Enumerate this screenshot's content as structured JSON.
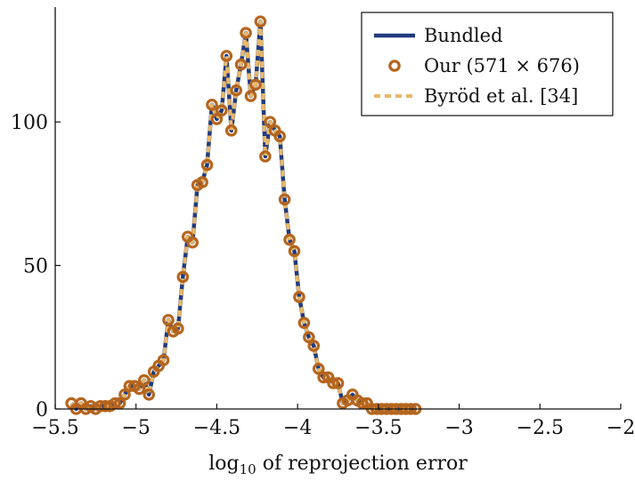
{
  "chart_data": {
    "type": "line",
    "title": "",
    "xlabel": {
      "prefix": "log",
      "subscript": "10",
      "suffix": " of reprojection error"
    },
    "ylabel": "",
    "xlim": [
      -5.5,
      -2
    ],
    "ylim": [
      0,
      140
    ],
    "x_ticks": [
      -5.5,
      -5,
      -4.5,
      -4,
      -3.5,
      -3,
      -2.5,
      -2
    ],
    "x_tick_labels": [
      "−5.5",
      "−5",
      "−4.5",
      "−4",
      "−3.5",
      "−3",
      "−2.5",
      "−2"
    ],
    "y_ticks": [
      0,
      50,
      100
    ],
    "y_tick_labels": [
      "0",
      "50",
      "100"
    ],
    "grid": false,
    "legend_position": "top-right",
    "colors": {
      "bundled": "#1f3b80",
      "our": "#b5651d",
      "byrod": "#e8b86a"
    },
    "x": [
      -5.4,
      -5.37,
      -5.34,
      -5.31,
      -5.28,
      -5.25,
      -5.22,
      -5.19,
      -5.16,
      -5.13,
      -5.1,
      -5.07,
      -5.04,
      -5.01,
      -4.98,
      -4.95,
      -4.92,
      -4.89,
      -4.86,
      -4.83,
      -4.8,
      -4.77,
      -4.74,
      -4.71,
      -4.68,
      -4.65,
      -4.62,
      -4.59,
      -4.56,
      -4.53,
      -4.5,
      -4.47,
      -4.44,
      -4.41,
      -4.38,
      -4.35,
      -4.32,
      -4.29,
      -4.26,
      -4.23,
      -4.2,
      -4.17,
      -4.14,
      -4.11,
      -4.08,
      -4.05,
      -4.02,
      -3.99,
      -3.96,
      -3.93,
      -3.9,
      -3.87,
      -3.84,
      -3.81,
      -3.78,
      -3.75,
      -3.72,
      -3.69,
      -3.66,
      -3.63,
      -3.6,
      -3.57,
      -3.54,
      -3.51,
      -3.48,
      -3.45,
      -3.42,
      -3.39,
      -3.36,
      -3.33,
      -3.3,
      -3.27
    ],
    "series": [
      {
        "name": "Bundled",
        "style": "line",
        "values": [
          2,
          0,
          2,
          0,
          1,
          0,
          1,
          1,
          1,
          2,
          2,
          5,
          8,
          8,
          7,
          10,
          5,
          13,
          15,
          17,
          31,
          27,
          28,
          46,
          60,
          58,
          78,
          79,
          85,
          106,
          101,
          104,
          123,
          97,
          111,
          120,
          131,
          109,
          113,
          135,
          88,
          100,
          97,
          95,
          73,
          59,
          55,
          39,
          30,
          25,
          22,
          14,
          11,
          11,
          9,
          9,
          2,
          3,
          5,
          3,
          2,
          2,
          0,
          0,
          0,
          0,
          0,
          0,
          0,
          0,
          0,
          0
        ]
      },
      {
        "name": "Our (571 × 676)",
        "style": "markers",
        "values": [
          2,
          0,
          2,
          0,
          1,
          0,
          1,
          1,
          1,
          2,
          2,
          5,
          8,
          8,
          7,
          10,
          5,
          13,
          15,
          17,
          31,
          27,
          28,
          46,
          60,
          58,
          78,
          79,
          85,
          106,
          101,
          104,
          123,
          97,
          111,
          120,
          131,
          109,
          113,
          135,
          88,
          100,
          97,
          95,
          73,
          59,
          55,
          39,
          30,
          25,
          22,
          14,
          11,
          11,
          9,
          9,
          2,
          3,
          5,
          3,
          2,
          2,
          0,
          0,
          0,
          0,
          0,
          0,
          0,
          0,
          0,
          0
        ]
      },
      {
        "name": "Byröd et al. [34]",
        "style": "dashed",
        "values": [
          2,
          0,
          2,
          0,
          1,
          0,
          1,
          1,
          1,
          2,
          2,
          5,
          8,
          8,
          7,
          10,
          5,
          13,
          15,
          17,
          31,
          27,
          28,
          46,
          60,
          58,
          78,
          79,
          85,
          106,
          101,
          104,
          123,
          97,
          111,
          120,
          131,
          109,
          113,
          135,
          88,
          100,
          97,
          95,
          73,
          59,
          55,
          39,
          30,
          25,
          22,
          14,
          11,
          11,
          9,
          9,
          2,
          3,
          5,
          3,
          2,
          2,
          0,
          0,
          0,
          0,
          0,
          0,
          0,
          0,
          0,
          0
        ]
      }
    ]
  }
}
